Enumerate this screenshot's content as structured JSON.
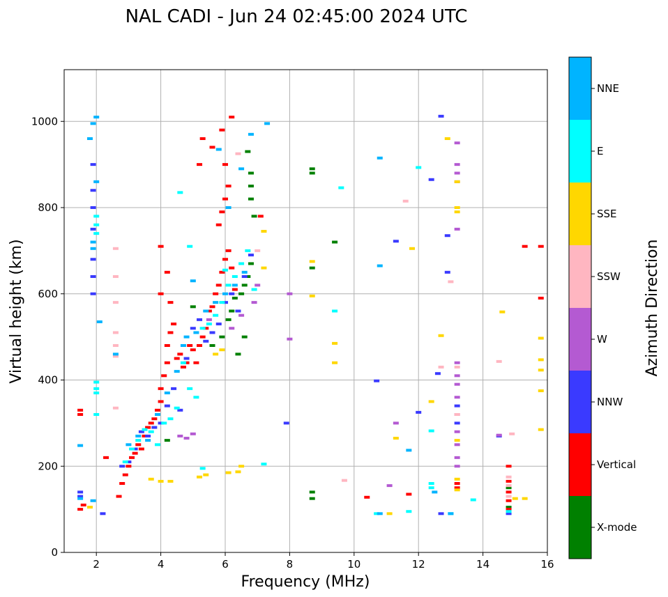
{
  "chart_data": {
    "type": "scatter",
    "title": "NAL CADI - Jun 24 02:45:00 2024 UTC",
    "xlabel": "Frequency (MHz)",
    "ylabel": "Virtual height (km)",
    "xlim": [
      1,
      16
    ],
    "ylim": [
      0,
      1120
    ],
    "xticks": [
      2,
      4,
      6,
      8,
      10,
      12,
      14,
      16
    ],
    "yticks": [
      0,
      200,
      400,
      600,
      800,
      1000
    ],
    "xtick_labels": [
      "2",
      "4",
      "6",
      "8",
      "10",
      "12",
      "14",
      "16"
    ],
    "ytick_labels": [
      "0",
      "200",
      "400",
      "600",
      "800",
      "1000"
    ],
    "grid": true,
    "colorbar": {
      "title": "Azimuth Direction",
      "categories": [
        {
          "name": "X-mode",
          "color": "#008000"
        },
        {
          "name": "Vertical",
          "color": "#ff0000"
        },
        {
          "name": "NNW",
          "color": "#3a3aff"
        },
        {
          "name": "W",
          "color": "#b45ad2"
        },
        {
          "name": "SSW",
          "color": "#ffb6c1"
        },
        {
          "name": "SSE",
          "color": "#ffd700"
        },
        {
          "name": "E",
          "color": "#00ffff"
        },
        {
          "name": "NNE",
          "color": "#00b4ff"
        }
      ]
    },
    "series": [
      {
        "name": "X-mode",
        "points": [
          [
            4.2,
            260
          ],
          [
            5.6,
            480
          ],
          [
            5.9,
            500
          ],
          [
            6.1,
            540
          ],
          [
            6.2,
            560
          ],
          [
            6.3,
            590
          ],
          [
            6.5,
            600
          ],
          [
            6.6,
            620
          ],
          [
            6.7,
            640
          ],
          [
            6.8,
            670
          ],
          [
            6.4,
            460
          ],
          [
            6.6,
            500
          ],
          [
            6.8,
            850
          ],
          [
            6.8,
            880
          ],
          [
            6.7,
            930
          ],
          [
            6.9,
            780
          ],
          [
            6.8,
            820
          ],
          [
            5.0,
            570
          ],
          [
            8.7,
            890
          ],
          [
            8.7,
            880
          ],
          [
            8.7,
            660
          ],
          [
            8.7,
            140
          ],
          [
            8.7,
            125
          ],
          [
            9.4,
            720
          ],
          [
            14.8,
            150
          ],
          [
            14.8,
            105
          ]
        ]
      },
      {
        "name": "Vertical",
        "points": [
          [
            1.5,
            100
          ],
          [
            1.6,
            110
          ],
          [
            2.7,
            130
          ],
          [
            2.8,
            160
          ],
          [
            2.9,
            180
          ],
          [
            3.0,
            200
          ],
          [
            3.1,
            220
          ],
          [
            3.2,
            230
          ],
          [
            3.3,
            250
          ],
          [
            3.4,
            240
          ],
          [
            3.5,
            270
          ],
          [
            3.6,
            290
          ],
          [
            3.7,
            300
          ],
          [
            3.8,
            310
          ],
          [
            3.9,
            330
          ],
          [
            4.0,
            350
          ],
          [
            4.0,
            380
          ],
          [
            4.1,
            410
          ],
          [
            4.2,
            440
          ],
          [
            4.2,
            480
          ],
          [
            4.3,
            510
          ],
          [
            4.4,
            530
          ],
          [
            4.5,
            450
          ],
          [
            4.6,
            460
          ],
          [
            4.7,
            430
          ],
          [
            4.8,
            440
          ],
          [
            4.9,
            480
          ],
          [
            5.0,
            470
          ],
          [
            5.1,
            440
          ],
          [
            5.2,
            480
          ],
          [
            5.3,
            500
          ],
          [
            5.4,
            520
          ],
          [
            5.5,
            560
          ],
          [
            5.6,
            570
          ],
          [
            5.7,
            600
          ],
          [
            5.8,
            620
          ],
          [
            5.9,
            650
          ],
          [
            6.0,
            680
          ],
          [
            6.1,
            700
          ],
          [
            6.2,
            660
          ],
          [
            6.3,
            610
          ],
          [
            5.8,
            760
          ],
          [
            5.9,
            790
          ],
          [
            6.0,
            820
          ],
          [
            6.1,
            850
          ],
          [
            6.0,
            900
          ],
          [
            5.6,
            940
          ],
          [
            5.3,
            960
          ],
          [
            5.2,
            900
          ],
          [
            5.9,
            980
          ],
          [
            6.2,
            1010
          ],
          [
            4.0,
            710
          ],
          [
            4.2,
            650
          ],
          [
            4.3,
            580
          ],
          [
            1.5,
            330
          ],
          [
            1.5,
            320
          ],
          [
            2.3,
            220
          ],
          [
            4.0,
            600
          ],
          [
            15.3,
            710
          ],
          [
            15.8,
            710
          ],
          [
            15.8,
            590
          ],
          [
            13.2,
            160
          ],
          [
            13.2,
            150
          ],
          [
            14.8,
            200
          ],
          [
            14.8,
            165
          ],
          [
            14.8,
            140
          ],
          [
            14.8,
            120
          ],
          [
            14.8,
            100
          ],
          [
            11.7,
            135
          ],
          [
            10.4,
            128
          ],
          [
            7.1,
            780
          ]
        ]
      },
      {
        "name": "NNW",
        "points": [
          [
            1.5,
            140
          ],
          [
            1.5,
            130
          ],
          [
            2.8,
            200
          ],
          [
            3.0,
            210
          ],
          [
            3.2,
            240
          ],
          [
            3.4,
            280
          ],
          [
            3.6,
            270
          ],
          [
            3.8,
            290
          ],
          [
            4.0,
            300
          ],
          [
            4.2,
            340
          ],
          [
            4.4,
            380
          ],
          [
            4.6,
            330
          ],
          [
            4.8,
            450
          ],
          [
            5.0,
            520
          ],
          [
            5.2,
            540
          ],
          [
            5.4,
            490
          ],
          [
            5.6,
            510
          ],
          [
            5.8,
            530
          ],
          [
            6.0,
            580
          ],
          [
            6.2,
            600
          ],
          [
            6.4,
            560
          ],
          [
            6.6,
            640
          ],
          [
            6.8,
            690
          ],
          [
            1.9,
            900
          ],
          [
            1.9,
            840
          ],
          [
            1.9,
            800
          ],
          [
            1.9,
            750
          ],
          [
            1.9,
            680
          ],
          [
            1.9,
            640
          ],
          [
            1.9,
            600
          ],
          [
            2.2,
            90
          ],
          [
            12.7,
            1012
          ],
          [
            12.4,
            865
          ],
          [
            12.9,
            735
          ],
          [
            12.9,
            650
          ],
          [
            12.6,
            415
          ],
          [
            11.3,
            722
          ],
          [
            10.7,
            398
          ],
          [
            7.9,
            300
          ],
          [
            12.0,
            325
          ],
          [
            13.2,
            340
          ],
          [
            12.7,
            90
          ],
          [
            13.2,
            300
          ],
          [
            14.5,
            270
          ],
          [
            14.8,
            90
          ]
        ]
      },
      {
        "name": "W",
        "points": [
          [
            4.6,
            270
          ],
          [
            4.8,
            265
          ],
          [
            5.0,
            275
          ],
          [
            5.5,
            540
          ],
          [
            6.2,
            520
          ],
          [
            6.5,
            550
          ],
          [
            6.9,
            580
          ],
          [
            7.0,
            620
          ],
          [
            13.2,
            950
          ],
          [
            13.2,
            900
          ],
          [
            13.2,
            880
          ],
          [
            13.2,
            860
          ],
          [
            13.2,
            750
          ],
          [
            13.2,
            440
          ],
          [
            13.2,
            410
          ],
          [
            13.2,
            390
          ],
          [
            13.2,
            360
          ],
          [
            13.2,
            320
          ],
          [
            13.2,
            280
          ],
          [
            13.2,
            250
          ],
          [
            13.2,
            220
          ],
          [
            13.2,
            200
          ],
          [
            8.0,
            600
          ],
          [
            8.0,
            495
          ],
          [
            11.3,
            300
          ],
          [
            11.1,
            155
          ],
          [
            14.5,
            272
          ]
        ]
      },
      {
        "name": "SSW",
        "points": [
          [
            2.6,
            705
          ],
          [
            2.6,
            640
          ],
          [
            2.6,
            580
          ],
          [
            2.6,
            510
          ],
          [
            2.6,
            480
          ],
          [
            2.6,
            455
          ],
          [
            2.6,
            335
          ],
          [
            6.4,
            925
          ],
          [
            7.0,
            700
          ],
          [
            11.6,
            815
          ],
          [
            13.0,
            628
          ],
          [
            13.2,
            430
          ],
          [
            13.2,
            320
          ],
          [
            12.7,
            430
          ],
          [
            14.5,
            443
          ],
          [
            14.9,
            275
          ],
          [
            14.8,
            175
          ],
          [
            14.8,
            155
          ],
          [
            14.8,
            130
          ],
          [
            9.7,
            167
          ]
        ]
      },
      {
        "name": "SSE",
        "points": [
          [
            1.8,
            105
          ],
          [
            3.7,
            170
          ],
          [
            4.0,
            165
          ],
          [
            4.3,
            165
          ],
          [
            5.2,
            175
          ],
          [
            5.4,
            180
          ],
          [
            6.1,
            185
          ],
          [
            6.4,
            187
          ],
          [
            6.5,
            200
          ],
          [
            5.7,
            460
          ],
          [
            5.9,
            470
          ],
          [
            7.2,
            745
          ],
          [
            7.2,
            660
          ],
          [
            8.7,
            675
          ],
          [
            8.7,
            595
          ],
          [
            9.4,
            485
          ],
          [
            9.4,
            440
          ],
          [
            11.1,
            90
          ],
          [
            11.3,
            265
          ],
          [
            11.8,
            705
          ],
          [
            12.4,
            350
          ],
          [
            12.7,
            503
          ],
          [
            12.9,
            960
          ],
          [
            13.2,
            860
          ],
          [
            13.2,
            800
          ],
          [
            13.2,
            790
          ],
          [
            13.2,
            170
          ],
          [
            13.2,
            145
          ],
          [
            13.2,
            260
          ],
          [
            14.6,
            558
          ],
          [
            15.0,
            125
          ],
          [
            15.3,
            125
          ],
          [
            15.8,
            497
          ],
          [
            15.8,
            447
          ],
          [
            15.8,
            423
          ],
          [
            15.8,
            375
          ],
          [
            15.8,
            285
          ]
        ]
      },
      {
        "name": "E",
        "points": [
          [
            2.0,
            780
          ],
          [
            2.0,
            760
          ],
          [
            2.0,
            740
          ],
          [
            2.0,
            395
          ],
          [
            2.0,
            380
          ],
          [
            2.0,
            370
          ],
          [
            2.0,
            320
          ],
          [
            2.9,
            210
          ],
          [
            3.1,
            240
          ],
          [
            3.3,
            260
          ],
          [
            3.5,
            285
          ],
          [
            3.7,
            280
          ],
          [
            3.9,
            250
          ],
          [
            4.1,
            300
          ],
          [
            4.3,
            310
          ],
          [
            4.5,
            335
          ],
          [
            4.7,
            440
          ],
          [
            4.9,
            380
          ],
          [
            5.1,
            360
          ],
          [
            5.3,
            520
          ],
          [
            5.5,
            530
          ],
          [
            5.7,
            550
          ],
          [
            5.9,
            580
          ],
          [
            6.1,
            620
          ],
          [
            6.3,
            640
          ],
          [
            6.5,
            670
          ],
          [
            6.7,
            700
          ],
          [
            6.9,
            610
          ],
          [
            4.9,
            710
          ],
          [
            4.6,
            835
          ],
          [
            9.6,
            846
          ],
          [
            12.0,
            893
          ],
          [
            9.4,
            560
          ],
          [
            7.2,
            205
          ],
          [
            12.4,
            282
          ],
          [
            12.4,
            160
          ],
          [
            12.4,
            150
          ],
          [
            13.7,
            122
          ],
          [
            14.8,
            95
          ],
          [
            13.0,
            90
          ],
          [
            11.7,
            95
          ],
          [
            10.7,
            90
          ],
          [
            5.3,
            195
          ],
          [
            6.0,
            655
          ]
        ]
      },
      {
        "name": "NNE",
        "points": [
          [
            1.5,
            125
          ],
          [
            1.9,
            120
          ],
          [
            2.0,
            1010
          ],
          [
            1.9,
            995
          ],
          [
            1.8,
            960
          ],
          [
            2.0,
            860
          ],
          [
            1.9,
            720
          ],
          [
            1.9,
            705
          ],
          [
            3.0,
            250
          ],
          [
            3.3,
            270
          ],
          [
            3.6,
            260
          ],
          [
            3.9,
            320
          ],
          [
            4.2,
            370
          ],
          [
            4.5,
            420
          ],
          [
            4.8,
            500
          ],
          [
            5.1,
            510
          ],
          [
            5.4,
            560
          ],
          [
            5.7,
            580
          ],
          [
            6.0,
            600
          ],
          [
            6.3,
            620
          ],
          [
            6.6,
            650
          ],
          [
            6.8,
            970
          ],
          [
            6.5,
            890
          ],
          [
            6.1,
            800
          ],
          [
            4.7,
            480
          ],
          [
            5.0,
            630
          ],
          [
            10.8,
            665
          ],
          [
            10.8,
            90
          ],
          [
            11.7,
            237
          ],
          [
            13.0,
            90
          ],
          [
            1.5,
            248
          ],
          [
            2.1,
            535
          ],
          [
            2.6,
            460
          ],
          [
            7.3,
            995
          ],
          [
            5.8,
            935
          ],
          [
            10.8,
            915
          ],
          [
            12.5,
            140
          ]
        ]
      }
    ]
  }
}
